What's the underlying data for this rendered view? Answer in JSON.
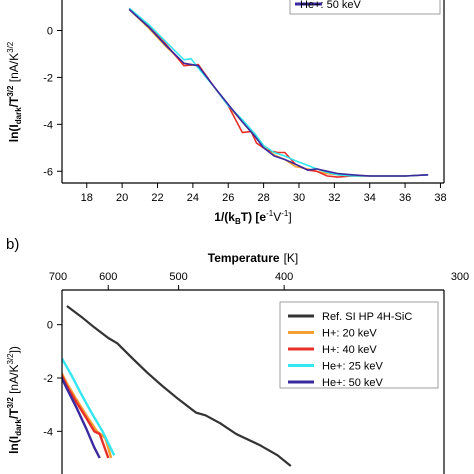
{
  "panel_a": {
    "label": "",
    "legend_visible": [
      "He+: 50 keV"
    ]
  },
  "panel_b": {
    "label": "b)",
    "top_axis_title": "Temperature",
    "top_axis_unit": "[K]",
    "top_ticks": [
      "700",
      "600",
      "500",
      "400",
      "300"
    ]
  },
  "colors": {
    "ref": "#333333",
    "h20": "#f5a033",
    "h40": "#e8302a",
    "he25": "#33e6f0",
    "he50": "#3a2a9e",
    "axis": "#000000",
    "legend_box": "#888888"
  },
  "chart_data": [
    {
      "type": "line",
      "panel": "a",
      "xlabel_main": "1/(k",
      "xlabel_sub": "B",
      "xlabel_tail": "T) [e",
      "xlabel_sup1": "-1",
      "xlabel_mid": "V",
      "xlabel_sup2": "-1",
      "xlabel_end": "]",
      "ylabel_main": "ln(I",
      "ylabel_sub": "dark",
      "ylabel_mid": "/T",
      "ylabel_sup": "3/2",
      "ylabel_tail": " [nA/K",
      "ylabel_sup2": "3/2",
      "xlim": [
        16.6,
        38.2
      ],
      "ylim": [
        -6.5,
        1.3
      ],
      "xticks": [
        18,
        20,
        22,
        24,
        26,
        28,
        30,
        32,
        34,
        36,
        38
      ],
      "yticks": [
        0,
        -2,
        -4,
        -6
      ],
      "series": [
        {
          "name": "H+: 20 keV",
          "color_key": "h20",
          "x": [
            20.4,
            21.5,
            22.5,
            23.5,
            24.3,
            25.2,
            26.0,
            26.8,
            27.5,
            28.0,
            28.6,
            29.2,
            29.8,
            30.5,
            31.0,
            31.6,
            32.2,
            33.0,
            34.0,
            35.0,
            36.0,
            37.3
          ],
          "y": [
            0.9,
            0.1,
            -0.7,
            -1.4,
            -1.5,
            -2.4,
            -3.2,
            -3.9,
            -4.5,
            -4.9,
            -5.3,
            -5.5,
            -5.8,
            -5.9,
            -6.0,
            -6.1,
            -6.15,
            -6.2,
            -6.2,
            -6.2,
            -6.2,
            -6.15
          ]
        },
        {
          "name": "H+: 40 keV",
          "color_key": "h40",
          "x": [
            20.4,
            21.5,
            22.5,
            23.5,
            24.3,
            25.2,
            26.0,
            26.8,
            27.3,
            27.6,
            28.2,
            28.8,
            29.2,
            29.8,
            30.5,
            31.0,
            31.6,
            32.2,
            33.0,
            34.0,
            35.0,
            36.0,
            37.3
          ],
          "y": [
            0.95,
            0.2,
            -0.6,
            -1.5,
            -1.45,
            -2.4,
            -3.2,
            -4.35,
            -4.3,
            -4.8,
            -5.1,
            -5.2,
            -5.2,
            -5.7,
            -5.95,
            -6.0,
            -6.2,
            -6.25,
            -6.2,
            -6.2,
            -6.2,
            -6.2,
            -6.15
          ]
        },
        {
          "name": "He+: 25 keV",
          "color_key": "he25",
          "x": [
            20.4,
            21.5,
            22.5,
            23.5,
            23.9,
            24.3,
            25.2,
            26.0,
            26.8,
            27.5,
            28.0,
            28.6,
            29.2,
            29.8,
            30.5,
            31.0,
            31.6,
            32.2,
            33.0,
            34.0,
            35.0,
            36.0,
            37.3
          ],
          "y": [
            0.95,
            0.25,
            -0.5,
            -1.25,
            -1.2,
            -1.6,
            -2.4,
            -3.2,
            -3.8,
            -4.4,
            -4.9,
            -5.2,
            -5.35,
            -5.55,
            -5.75,
            -5.9,
            -6.05,
            -6.15,
            -6.2,
            -6.2,
            -6.2,
            -6.2,
            -6.15
          ]
        },
        {
          "name": "He+: 50 keV",
          "color_key": "he50",
          "x": [
            20.4,
            21.5,
            22.5,
            23.5,
            24.3,
            25.2,
            26.0,
            26.8,
            27.5,
            28.0,
            28.6,
            29.2,
            29.8,
            30.5,
            31.0,
            31.6,
            32.2,
            33.0,
            34.0,
            35.0,
            36.0,
            37.3
          ],
          "y": [
            0.9,
            0.15,
            -0.65,
            -1.4,
            -1.5,
            -2.4,
            -3.15,
            -3.9,
            -4.5,
            -5.0,
            -5.35,
            -5.5,
            -5.7,
            -5.95,
            -5.9,
            -6.0,
            -6.1,
            -6.15,
            -6.2,
            -6.2,
            -6.2,
            -6.15
          ]
        }
      ]
    },
    {
      "type": "line",
      "panel": "b",
      "ylabel_main": "ln(I",
      "ylabel_sub": "dark",
      "ylabel_mid": "/T",
      "ylabel_sup": "3/2",
      "ylabel_tail": " [nA/K",
      "ylabel_sup2": "3/2",
      "ylabel_end": "])",
      "yticks": [
        0,
        -2,
        -4
      ],
      "ylim": [
        -5.6,
        1.3
      ],
      "x_in_temperature": true,
      "series": [
        {
          "name": "Ref. SI HP 4H-SiC",
          "color_key": "ref",
          "x": [
            680,
            650,
            625,
            600,
            585,
            560,
            540,
            520,
            500,
            480,
            470,
            455,
            440,
            430,
            420,
            405,
            395
          ],
          "y": [
            0.7,
            0.3,
            -0.1,
            -0.5,
            -0.7,
            -1.3,
            -1.8,
            -2.3,
            -2.8,
            -3.3,
            -3.4,
            -3.7,
            -4.1,
            -4.3,
            -4.5,
            -4.9,
            -5.3
          ]
        },
        {
          "name": "H+: 20 keV",
          "color_key": "h20",
          "x": [
            700,
            680,
            660,
            640,
            620,
            605,
            595
          ],
          "y": [
            -1.55,
            -2.2,
            -2.8,
            -3.4,
            -4.0,
            -4.25,
            -5.0
          ]
        },
        {
          "name": "H+: 40 keV",
          "color_key": "h40",
          "x": [
            700,
            680,
            660,
            640,
            625,
            615,
            600
          ],
          "y": [
            -1.6,
            -2.3,
            -2.9,
            -3.5,
            -4.0,
            -4.1,
            -5.0
          ]
        },
        {
          "name": "He+: 25 keV",
          "color_key": "he25",
          "x": [
            700,
            690,
            670,
            650,
            630,
            610,
            590
          ],
          "y": [
            -1.1,
            -1.3,
            -1.9,
            -2.6,
            -3.3,
            -4.0,
            -4.9
          ]
        },
        {
          "name": "He+: 50 keV",
          "color_key": "he50",
          "x": [
            700,
            680,
            660,
            640,
            625,
            615
          ],
          "y": [
            -1.7,
            -2.4,
            -3.1,
            -3.9,
            -4.6,
            -5.0
          ]
        }
      ]
    }
  ]
}
